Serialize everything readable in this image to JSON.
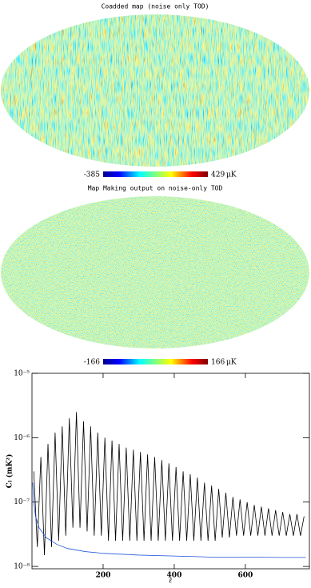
{
  "maps": [
    {
      "title": "Coadded map (noise only TOD)",
      "colorbar": {
        "min": -385,
        "max": 429,
        "unit": "μK"
      }
    },
    {
      "title": "Map Making output on noise-only TOD",
      "colorbar": {
        "min": -166,
        "max": 166,
        "unit": "μK"
      }
    }
  ],
  "chart_data": {
    "type": "line",
    "xlabel": "ℓ",
    "ylabel": "Cₗ (mK²)",
    "log_y": true,
    "xlim": [
      0,
      780
    ],
    "xticks": [
      200,
      400,
      600
    ],
    "ylim": [
      9.2e-09,
      1e-05
    ],
    "yticks": [
      {
        "value": 1e-08,
        "label": "10⁻⁸"
      },
      {
        "value": 1e-07,
        "label": "10⁻⁷"
      },
      {
        "value": 1e-06,
        "label": "10⁻⁶"
      },
      {
        "value": 1e-05,
        "label": "10⁻⁵"
      }
    ],
    "series": [
      {
        "color": "#000000",
        "x": [
          5,
          15,
          25,
          35,
          45,
          55,
          65,
          75,
          85,
          95,
          105,
          115,
          125,
          135,
          145,
          155,
          165,
          175,
          185,
          195,
          205,
          215,
          225,
          235,
          245,
          255,
          265,
          275,
          285,
          295,
          305,
          315,
          325,
          335,
          345,
          355,
          365,
          375,
          385,
          395,
          405,
          415,
          425,
          435,
          445,
          455,
          465,
          475,
          485,
          495,
          505,
          515,
          525,
          535,
          545,
          555,
          565,
          575,
          585,
          595,
          605,
          615,
          625,
          635,
          645,
          655,
          665,
          675,
          685,
          695,
          705,
          715,
          725,
          735,
          745,
          755,
          765
        ],
        "values": [
          3e-07,
          2e-08,
          5e-07,
          1.5e-08,
          8e-07,
          2e-08,
          1.2e-06,
          2.5e-08,
          1.5e-06,
          3e-08,
          2e-06,
          4e-08,
          2.5e-06,
          4e-08,
          1.8e-06,
          3.5e-08,
          1.5e-06,
          3e-08,
          1.2e-06,
          3e-08,
          1e-06,
          2.5e-08,
          9e-07,
          2.5e-08,
          8e-07,
          2.5e-08,
          7e-07,
          2.5e-08,
          6.5e-07,
          2.5e-08,
          6e-07,
          2.5e-08,
          5.5e-07,
          2.5e-08,
          5e-07,
          2.5e-08,
          4.5e-07,
          2.5e-08,
          4e-07,
          2.5e-08,
          3.5e-07,
          2.5e-08,
          3e-07,
          2.5e-08,
          2.7e-07,
          2.5e-08,
          2.4e-07,
          2.5e-08,
          2e-07,
          2.5e-08,
          1.8e-07,
          2.5e-08,
          1.6e-07,
          2.8e-08,
          1.4e-07,
          2.8e-08,
          1.2e-07,
          3e-08,
          1.1e-07,
          3e-08,
          1e-07,
          3e-08,
          9e-08,
          3e-08,
          8.5e-08,
          3e-08,
          8e-08,
          3e-08,
          7.5e-08,
          3e-08,
          7e-08,
          3e-08,
          6.5e-08,
          3e-08,
          6.5e-08,
          3e-08,
          6e-08
        ]
      },
      {
        "color": "#2255dd",
        "x": [
          2,
          5,
          10,
          20,
          40,
          70,
          100,
          150,
          200,
          300,
          400,
          500,
          600,
          700,
          770
        ],
        "values": [
          2e-07,
          1e-07,
          6e-08,
          4e-08,
          2.8e-08,
          2.2e-08,
          1.9e-08,
          1.7e-08,
          1.6e-08,
          1.5e-08,
          1.45e-08,
          1.4e-08,
          1.4e-08,
          1.38e-08,
          1.38e-08
        ]
      }
    ]
  }
}
